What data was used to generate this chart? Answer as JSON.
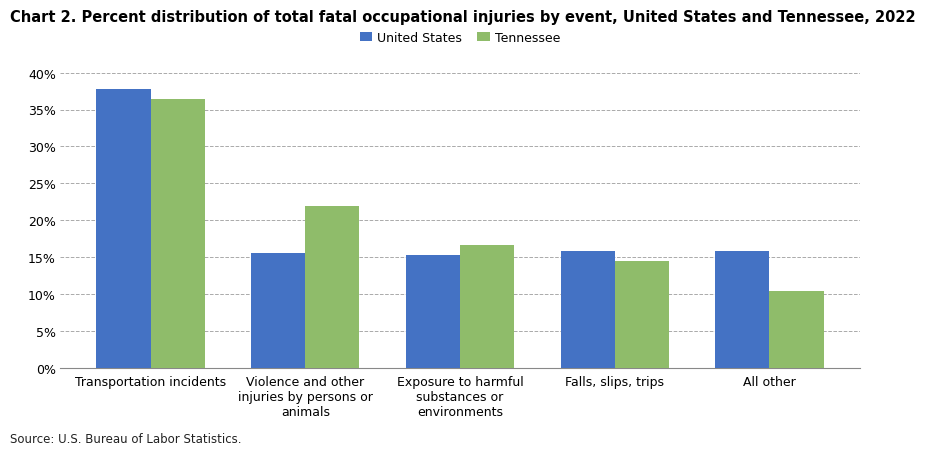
{
  "title": "Chart 2. Percent distribution of total fatal occupational injuries by event, United States and Tennessee, 2022",
  "categories": [
    "Transportation incidents",
    "Violence and other\ninjuries by persons or\nanimals",
    "Exposure to harmful\nsubstances or\nenvironments",
    "Falls, slips, trips",
    "All other"
  ],
  "us_values": [
    37.8,
    15.5,
    15.3,
    15.8,
    15.9
  ],
  "tn_values": [
    36.4,
    22.0,
    16.7,
    14.5,
    10.4
  ],
  "us_color": "#4472C4",
  "tn_color": "#8FBC6A",
  "legend_labels": [
    "United States",
    "Tennessee"
  ],
  "ylim": [
    0,
    40
  ],
  "yticks": [
    0,
    5,
    10,
    15,
    20,
    25,
    30,
    35,
    40
  ],
  "source": "Source: U.S. Bureau of Labor Statistics.",
  "bar_width": 0.35,
  "background_color": "#ffffff",
  "grid_color": "#aaaaaa",
  "title_fontsize": 10.5,
  "tick_fontsize": 9,
  "legend_fontsize": 9,
  "source_fontsize": 8.5
}
